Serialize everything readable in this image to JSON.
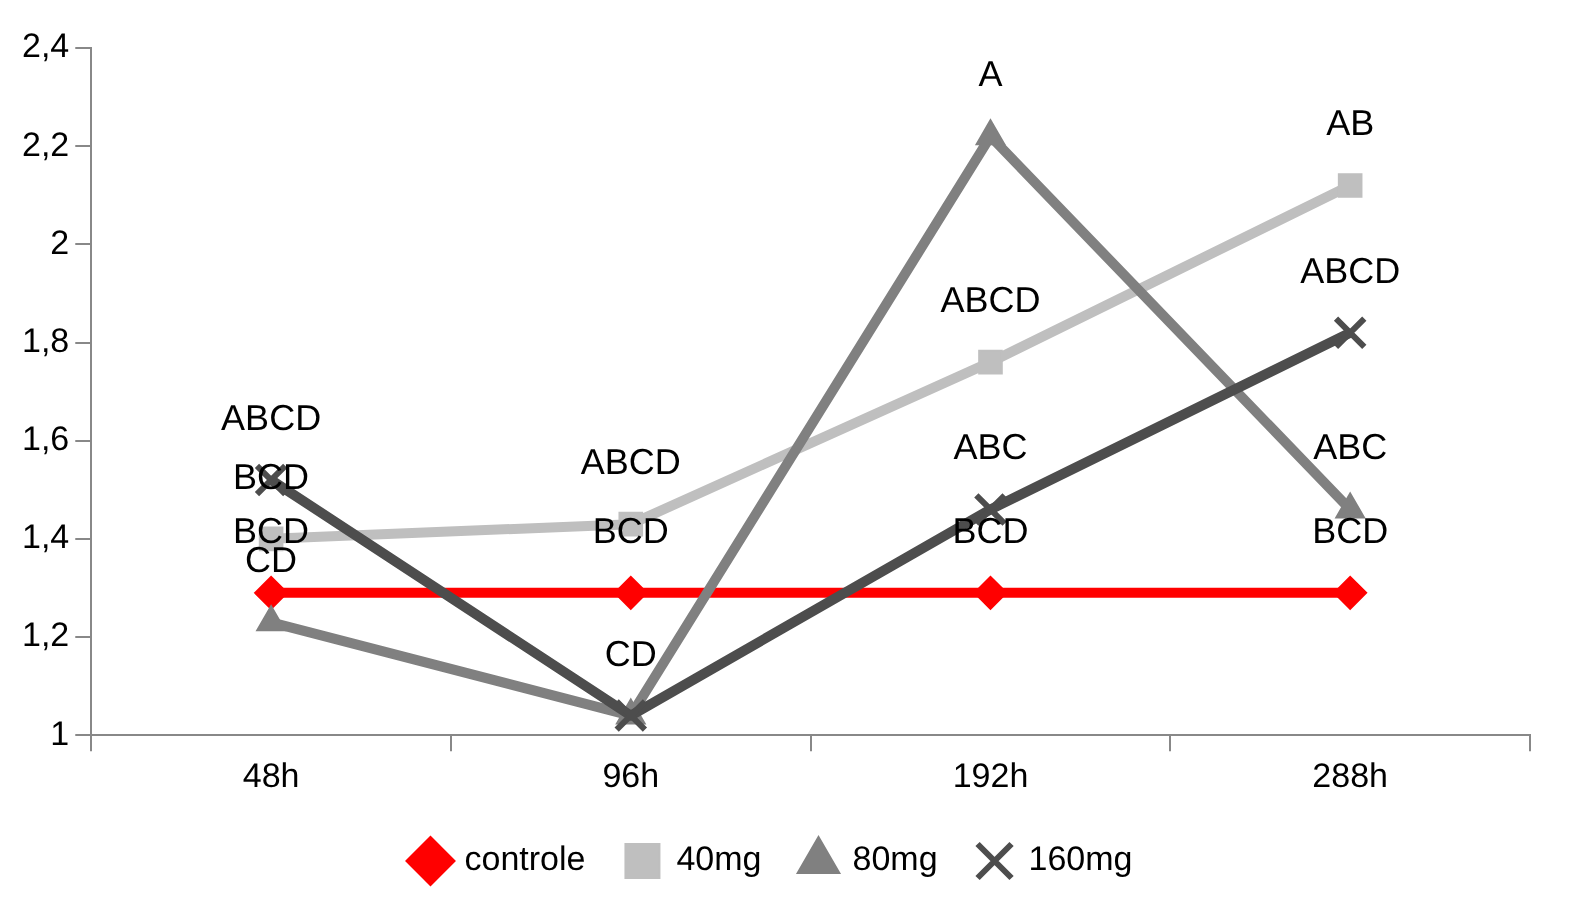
{
  "chart_data": {
    "type": "line",
    "categories": [
      "48h",
      "96h",
      "192h",
      "288h"
    ],
    "series": [
      {
        "name": "controle",
        "color": "#ff0000",
        "marker": "diamond",
        "values": [
          1.29,
          1.29,
          1.29,
          1.29
        ],
        "value_labels": [
          "BCD",
          "BCD",
          "BCD",
          "BCD"
        ]
      },
      {
        "name": "40mg",
        "color": "#bfbfbf",
        "marker": "square",
        "values": [
          1.4,
          1.43,
          1.76,
          2.12
        ],
        "value_labels": [
          "BCD",
          "ABCD",
          "ABCD",
          "AB"
        ]
      },
      {
        "name": "80mg",
        "color": "#808080",
        "marker": "triangle",
        "values": [
          1.23,
          1.04,
          2.22,
          1.46
        ],
        "value_labels": [
          "CD",
          "CD",
          "A",
          "ABC"
        ]
      },
      {
        "name": "160mg",
        "color": "#4d4d4d",
        "marker": "cross",
        "values": [
          1.52,
          1.04,
          1.46,
          1.82
        ],
        "value_labels": [
          "ABCD",
          null,
          "ABC",
          "ABCD"
        ]
      }
    ],
    "ylim": [
      1,
      2.4
    ],
    "yticks": [
      1,
      {
        "value": 1.2,
        "label": "1,2"
      },
      {
        "value": 1.4,
        "label": "1,4"
      },
      {
        "value": 1.6,
        "label": "1,6"
      },
      {
        "value": 1.8,
        "label": "1,8"
      },
      2,
      {
        "value": 2.2,
        "label": "2,2"
      },
      {
        "value": 2.4,
        "label": "2,4"
      }
    ],
    "grid": false,
    "legend": "bottom",
    "line_style": "solid"
  }
}
